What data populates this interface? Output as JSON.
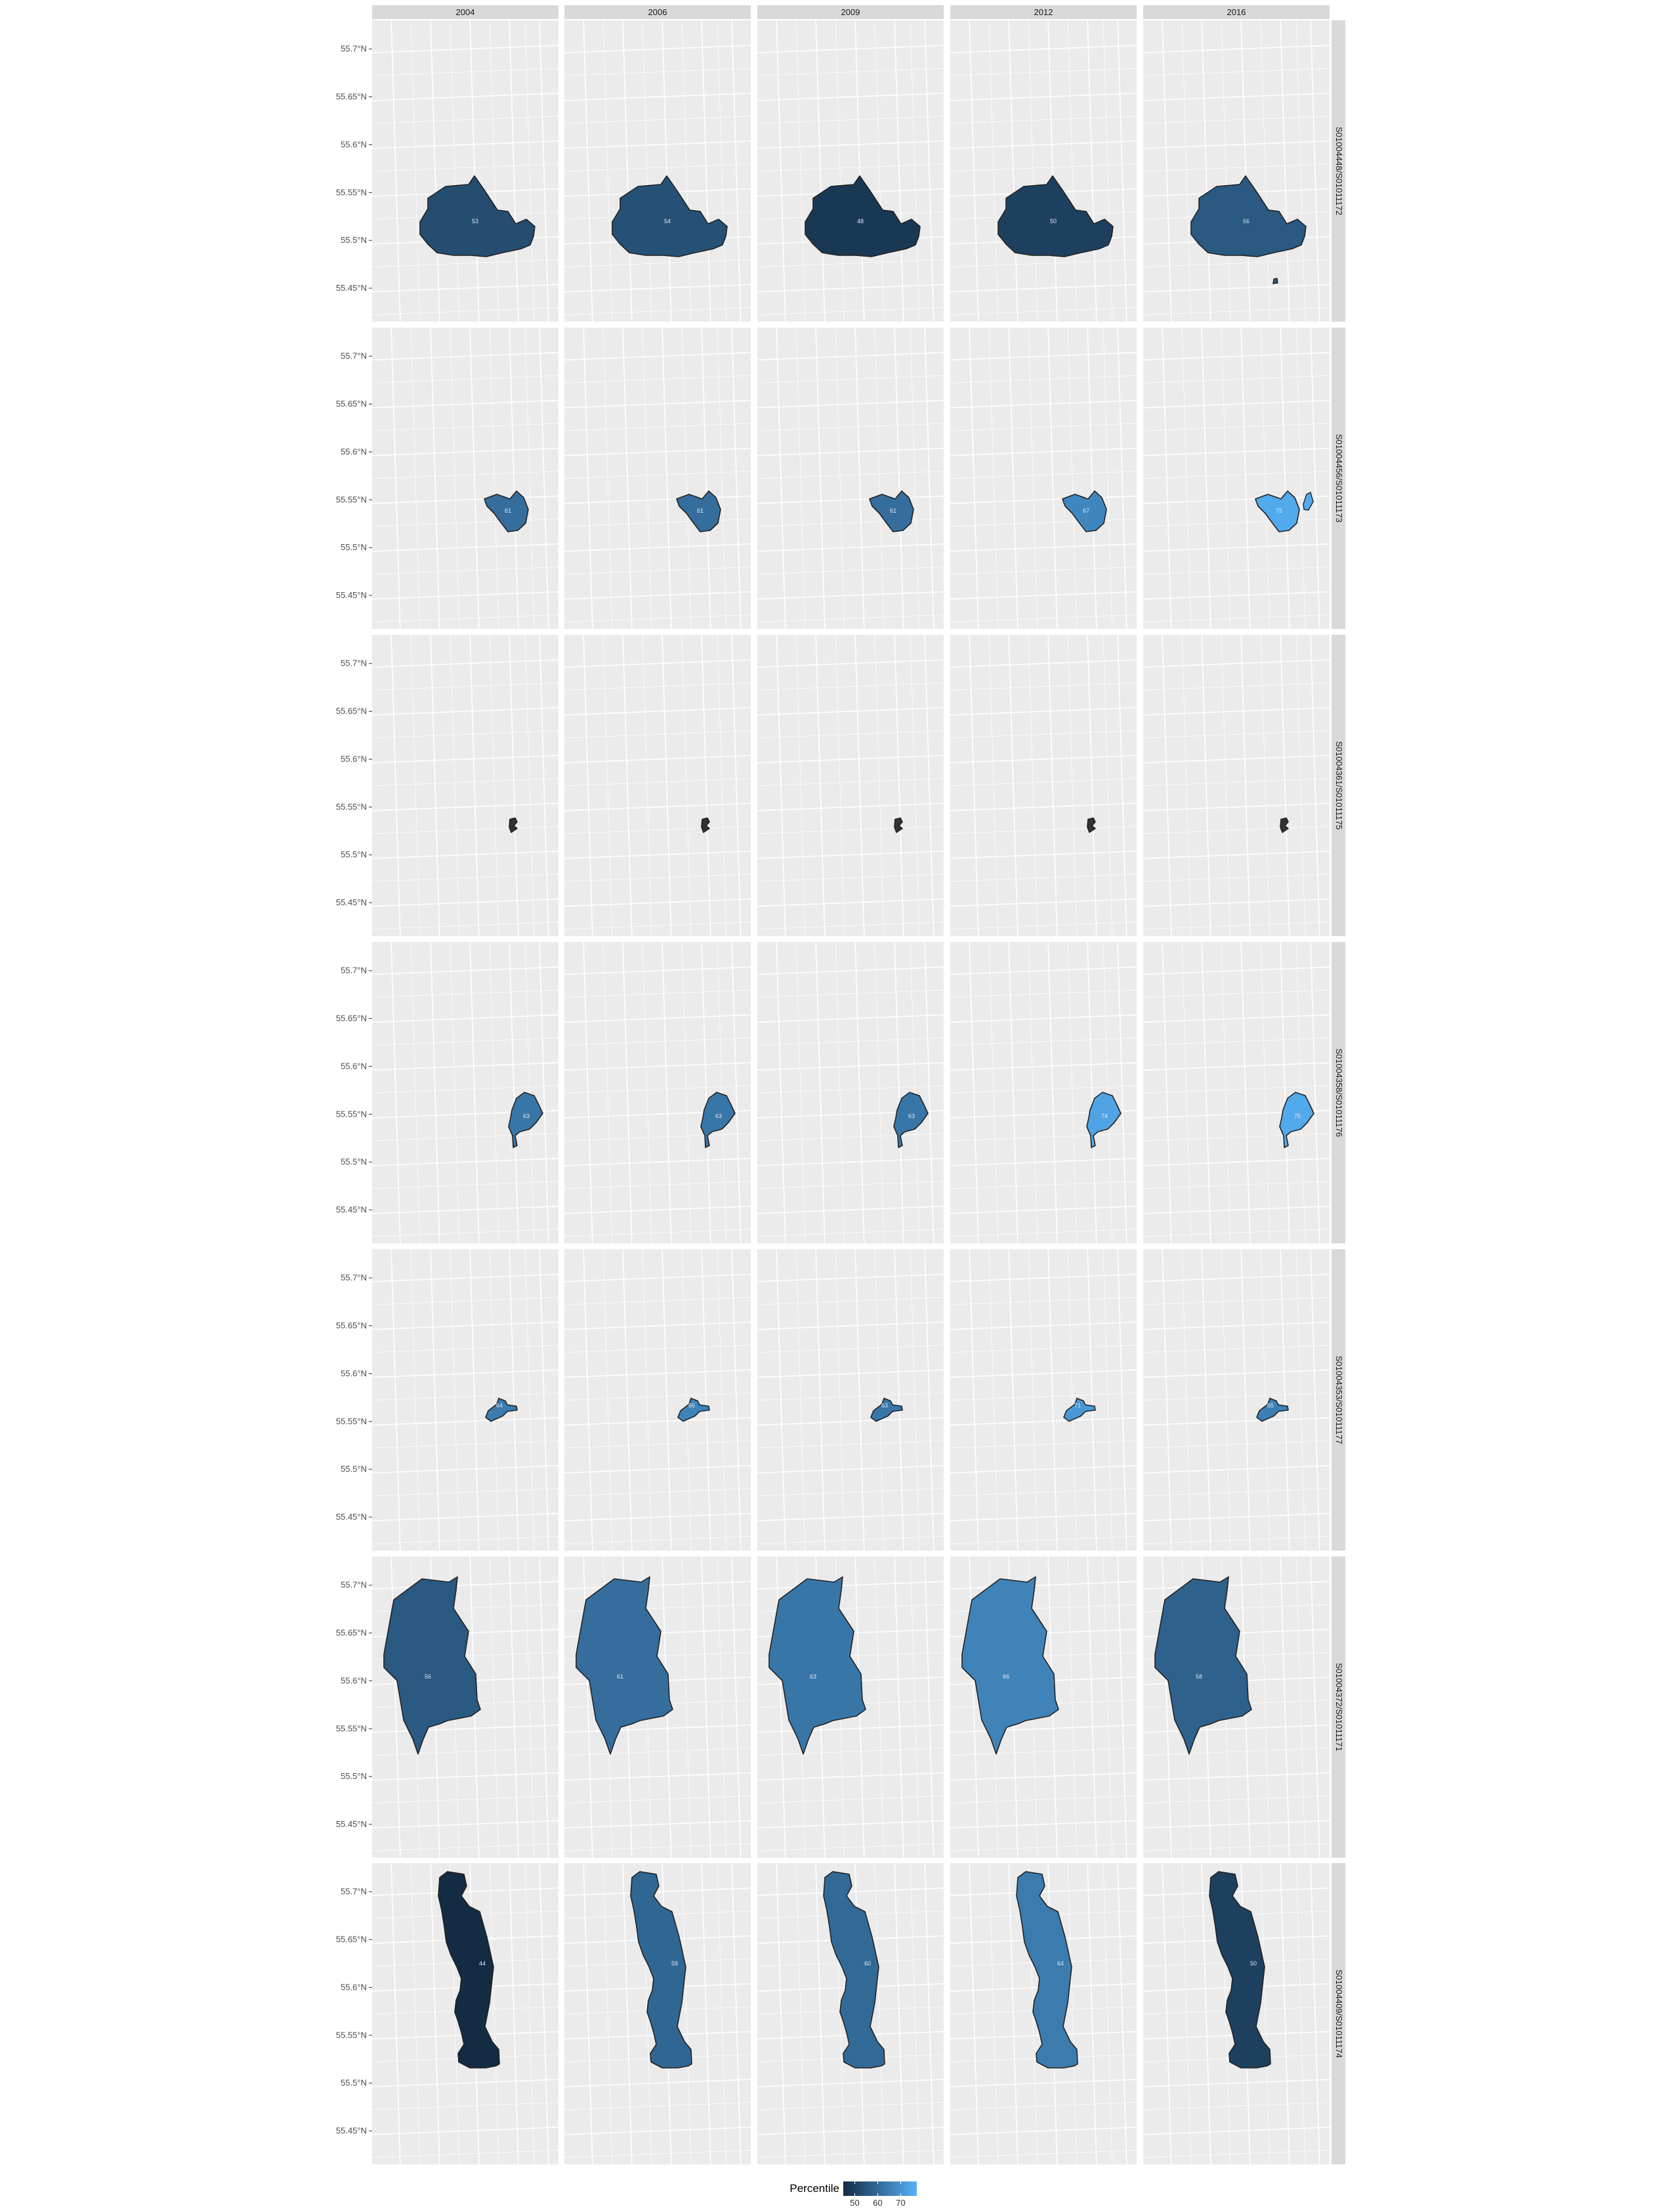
{
  "chart_data": {
    "type": "choropleth-map-facets",
    "columns": [
      "2004",
      "2006",
      "2009",
      "2012",
      "2016"
    ],
    "rows": [
      "S01004448/S01011172",
      "S01004456/S01011173",
      "S01004361/S01011175",
      "S01004358/S01011176",
      "S01004353/S01011177",
      "S01004372/S01011171",
      "S01004409/S01011174"
    ],
    "y_ticks": [
      "55.7°N",
      "55.65°N",
      "55.6°N",
      "55.55°N",
      "55.5°N",
      "55.45°N"
    ],
    "y_tick_values": [
      55.7,
      55.65,
      55.6,
      55.55,
      55.5,
      55.45
    ],
    "ylim": [
      55.415,
      55.73
    ],
    "grid": true,
    "legend": {
      "title": "Percentile",
      "ticks": [
        "50",
        "60",
        "70"
      ],
      "tick_values": [
        50,
        60,
        70
      ],
      "range": [
        45,
        77
      ],
      "low_color": "#132b43",
      "high_color": "#56b1f7",
      "position": "bottom"
    },
    "panel_background": "#ebebeb",
    "strip_background": "#d9d9d9",
    "cells": [
      [
        {
          "value": 53,
          "label": "53"
        },
        {
          "value": 54,
          "label": "54"
        },
        {
          "value": 48,
          "label": "48"
        },
        {
          "value": 50,
          "label": "50"
        },
        {
          "value": 56,
          "label": "56"
        }
      ],
      [
        {
          "value": 61,
          "label": "61"
        },
        {
          "value": 61,
          "label": "61"
        },
        {
          "value": 61,
          "label": "61"
        },
        {
          "value": 67,
          "label": "67"
        },
        {
          "value": 75,
          "label": "75"
        }
      ],
      [
        {
          "value": null,
          "label": ""
        },
        {
          "value": null,
          "label": ""
        },
        {
          "value": null,
          "label": ""
        },
        {
          "value": null,
          "label": ""
        },
        {
          "value": null,
          "label": ""
        }
      ],
      [
        {
          "value": 63,
          "label": "63"
        },
        {
          "value": 63,
          "label": "63"
        },
        {
          "value": 63,
          "label": "63"
        },
        {
          "value": 74,
          "label": "74"
        },
        {
          "value": 75,
          "label": "75"
        }
      ],
      [
        {
          "value": 64,
          "label": "64"
        },
        {
          "value": 66,
          "label": "66"
        },
        {
          "value": 63,
          "label": "63"
        },
        {
          "value": 71,
          "label": "71"
        },
        {
          "value": 65,
          "label": "65"
        }
      ],
      [
        {
          "value": 56,
          "label": "56"
        },
        {
          "value": 61,
          "label": "61"
        },
        {
          "value": 63,
          "label": "63"
        },
        {
          "value": 66,
          "label": "66"
        },
        {
          "value": 58,
          "label": "58"
        }
      ],
      [
        {
          "value": 44,
          "label": "44"
        },
        {
          "value": 59,
          "label": "59"
        },
        {
          "value": 60,
          "label": "60"
        },
        {
          "value": 64,
          "label": "64"
        },
        {
          "value": 50,
          "label": "50"
        }
      ]
    ]
  }
}
